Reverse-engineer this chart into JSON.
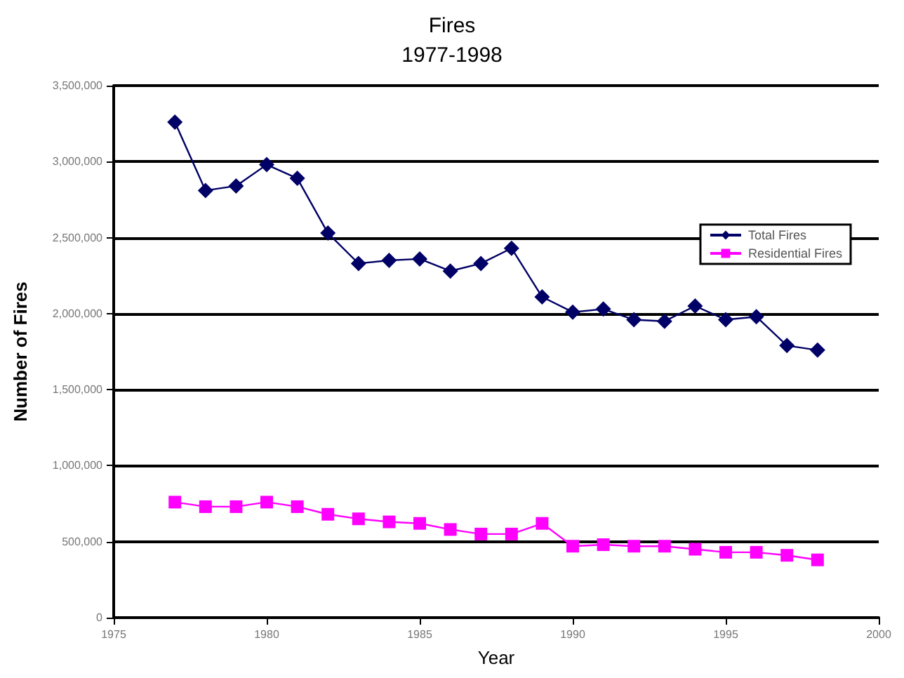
{
  "chart_data": {
    "type": "line",
    "title": "Fires",
    "subtitle": "1977-1998",
    "xlabel": "Year",
    "ylabel": "Number of Fires",
    "x": [
      1977,
      1978,
      1979,
      1980,
      1981,
      1982,
      1983,
      1984,
      1985,
      1986,
      1987,
      1988,
      1989,
      1990,
      1991,
      1992,
      1993,
      1994,
      1995,
      1996,
      1997,
      1998
    ],
    "series": [
      {
        "name": "Total Fires",
        "color": "#000066",
        "marker": "diamond",
        "values": [
          3260000,
          2810000,
          2840000,
          2980000,
          2890000,
          2530000,
          2330000,
          2350000,
          2360000,
          2280000,
          2330000,
          2430000,
          2110000,
          2010000,
          2030000,
          1960000,
          1950000,
          2050000,
          1960000,
          1980000,
          1790000,
          1760000
        ]
      },
      {
        "name": "Residential Fires",
        "color": "#ff00ff",
        "marker": "square",
        "values": [
          760000,
          730000,
          730000,
          760000,
          730000,
          680000,
          650000,
          630000,
          620000,
          580000,
          550000,
          550000,
          620000,
          470000,
          480000,
          470000,
          470000,
          450000,
          430000,
          430000,
          410000,
          380000
        ]
      }
    ],
    "xlim": [
      1975,
      2000
    ],
    "xticks": [
      1975,
      1980,
      1985,
      1990,
      1995,
      2000
    ],
    "ylim": [
      0,
      3500000
    ],
    "yticks": [
      0,
      {
        "value": 500000,
        "label": "500,000"
      },
      {
        "value": 1000000,
        "label": "1,000,000"
      },
      {
        "value": 1500000,
        "label": "1,500,000"
      },
      {
        "value": 2000000,
        "label": "2,000,000"
      },
      {
        "value": 2500000,
        "label": "2,500,000"
      },
      {
        "value": 3000000,
        "label": "3,000,000"
      },
      {
        "value": 3500000,
        "label": "3,500,000"
      }
    ],
    "grid": "y",
    "legend": "right",
    "line_style": "solid"
  }
}
